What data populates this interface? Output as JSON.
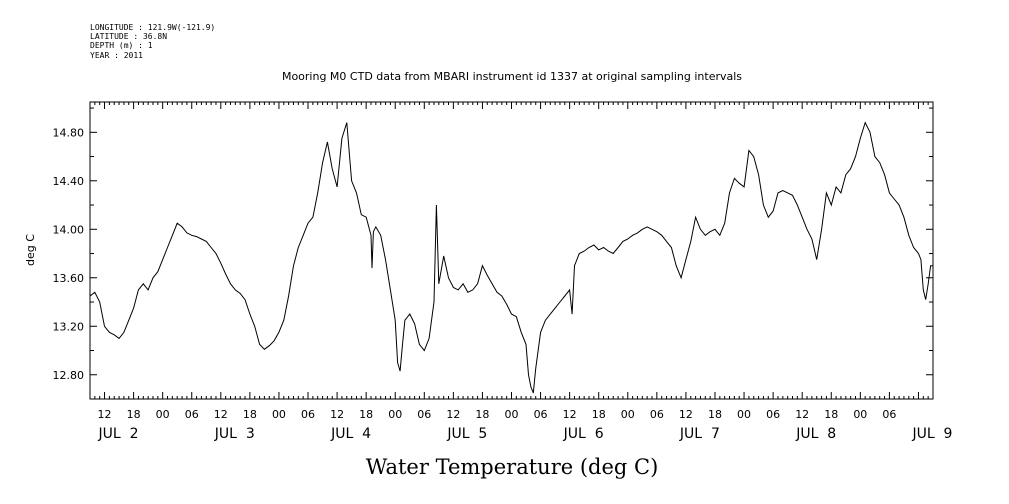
{
  "header": {
    "longitude": "LONGITUDE : 121.9W(-121.9)",
    "latitude": "LATITUDE : 36.8N",
    "depth": "DEPTH (m) : 1",
    "year": "YEAR : 2011"
  },
  "chart_data": {
    "type": "line",
    "title": "Mooring M0 CTD data from MBARI instrument id 1337 at original sampling intervals",
    "xlabel": "Water Temperature (deg C)",
    "ylabel": "deg C",
    "xlim_hours": [
      9,
      183
    ],
    "ylim": [
      12.6,
      15.05
    ],
    "yticks": [
      "12.80",
      "13.20",
      "13.60",
      "14.00",
      "14.40",
      "14.80"
    ],
    "x_hour_labels": [
      "12",
      "18",
      "00",
      "06",
      "12",
      "18",
      "00",
      "06",
      "12",
      "18",
      "00",
      "06",
      "12",
      "18",
      "00",
      "06",
      "12",
      "18",
      "00",
      "06",
      "12",
      "18",
      "00",
      "06",
      "12",
      "18",
      "00",
      "06"
    ],
    "day_labels": [
      "JUL  2",
      "JUL  3",
      "JUL  4",
      "JUL  5",
      "JUL  6",
      "JUL  7",
      "JUL  8",
      "JUL  9"
    ],
    "grid": false,
    "series": [
      {
        "values": [
          [
            9,
            13.45
          ],
          [
            10,
            13.48
          ],
          [
            11,
            13.4
          ],
          [
            12,
            13.2
          ],
          [
            13,
            13.15
          ],
          [
            14,
            13.13
          ],
          [
            15,
            13.1
          ],
          [
            16,
            13.15
          ],
          [
            17,
            13.25
          ],
          [
            18,
            13.35
          ],
          [
            19,
            13.5
          ],
          [
            20,
            13.55
          ],
          [
            21,
            13.5
          ],
          [
            22,
            13.6
          ],
          [
            23,
            13.65
          ],
          [
            24,
            13.75
          ],
          [
            25,
            13.85
          ],
          [
            26,
            13.95
          ],
          [
            27,
            14.05
          ],
          [
            28,
            14.02
          ],
          [
            29,
            13.97
          ],
          [
            30,
            13.95
          ],
          [
            31,
            13.94
          ],
          [
            32,
            13.92
          ],
          [
            33,
            13.9
          ],
          [
            34,
            13.85
          ],
          [
            35,
            13.8
          ],
          [
            36,
            13.72
          ],
          [
            37,
            13.63
          ],
          [
            38,
            13.55
          ],
          [
            39,
            13.5
          ],
          [
            40,
            13.47
          ],
          [
            41,
            13.42
          ],
          [
            42,
            13.3
          ],
          [
            43,
            13.2
          ],
          [
            44,
            13.05
          ],
          [
            45,
            13.01
          ],
          [
            46,
            13.04
          ],
          [
            47,
            13.08
          ],
          [
            48,
            13.15
          ],
          [
            49,
            13.25
          ],
          [
            50,
            13.45
          ],
          [
            51,
            13.7
          ],
          [
            52,
            13.85
          ],
          [
            53,
            13.95
          ],
          [
            54,
            14.05
          ],
          [
            55,
            14.1
          ],
          [
            56,
            14.3
          ],
          [
            57,
            14.55
          ],
          [
            58,
            14.72
          ],
          [
            59,
            14.5
          ],
          [
            60,
            14.35
          ],
          [
            61,
            14.75
          ],
          [
            62,
            14.88
          ],
          [
            63,
            14.4
          ],
          [
            64,
            14.3
          ],
          [
            65,
            14.12
          ],
          [
            66,
            14.1
          ],
          [
            67,
            13.95
          ],
          [
            67.2,
            13.68
          ],
          [
            67.5,
            13.98
          ],
          [
            68,
            14.02
          ],
          [
            69,
            13.95
          ],
          [
            70,
            13.75
          ],
          [
            71,
            13.5
          ],
          [
            72,
            13.25
          ],
          [
            72.5,
            12.9
          ],
          [
            73,
            12.83
          ],
          [
            73.5,
            13.05
          ],
          [
            74,
            13.25
          ],
          [
            75,
            13.3
          ],
          [
            76,
            13.22
          ],
          [
            77,
            13.05
          ],
          [
            78,
            13.0
          ],
          [
            79,
            13.1
          ],
          [
            80,
            13.4
          ],
          [
            80.5,
            14.2
          ],
          [
            81,
            13.55
          ],
          [
            82,
            13.78
          ],
          [
            83,
            13.6
          ],
          [
            84,
            13.52
          ],
          [
            85,
            13.5
          ],
          [
            86,
            13.55
          ],
          [
            87,
            13.48
          ],
          [
            88,
            13.5
          ],
          [
            89,
            13.55
          ],
          [
            90,
            13.7
          ],
          [
            91,
            13.62
          ],
          [
            92,
            13.55
          ],
          [
            93,
            13.48
          ],
          [
            94,
            13.45
          ],
          [
            95,
            13.38
          ],
          [
            96,
            13.3
          ],
          [
            97,
            13.28
          ],
          [
            98,
            13.15
          ],
          [
            99,
            13.05
          ],
          [
            99.5,
            12.8
          ],
          [
            100,
            12.7
          ],
          [
            100.5,
            12.65
          ],
          [
            101,
            12.85
          ],
          [
            102,
            13.15
          ],
          [
            103,
            13.25
          ],
          [
            104,
            13.3
          ],
          [
            105,
            13.35
          ],
          [
            106,
            13.4
          ],
          [
            107,
            13.45
          ],
          [
            108,
            13.5
          ],
          [
            108.5,
            13.3
          ],
          [
            109,
            13.7
          ],
          [
            110,
            13.8
          ],
          [
            111,
            13.82
          ],
          [
            112,
            13.85
          ],
          [
            113,
            13.87
          ],
          [
            114,
            13.83
          ],
          [
            115,
            13.85
          ],
          [
            116,
            13.82
          ],
          [
            117,
            13.8
          ],
          [
            118,
            13.85
          ],
          [
            119,
            13.9
          ],
          [
            120,
            13.92
          ],
          [
            121,
            13.95
          ],
          [
            122,
            13.97
          ],
          [
            123,
            14.0
          ],
          [
            124,
            14.02
          ],
          [
            125,
            14.0
          ],
          [
            126,
            13.98
          ],
          [
            127,
            13.95
          ],
          [
            128,
            13.9
          ],
          [
            129,
            13.85
          ],
          [
            130,
            13.7
          ],
          [
            131,
            13.6
          ],
          [
            132,
            13.75
          ],
          [
            133,
            13.9
          ],
          [
            134,
            14.1
          ],
          [
            135,
            14.0
          ],
          [
            136,
            13.95
          ],
          [
            137,
            13.98
          ],
          [
            138,
            14.0
          ],
          [
            139,
            13.95
          ],
          [
            140,
            14.05
          ],
          [
            141,
            14.3
          ],
          [
            142,
            14.42
          ],
          [
            143,
            14.38
          ],
          [
            144,
            14.35
          ],
          [
            145,
            14.65
          ],
          [
            146,
            14.6
          ],
          [
            147,
            14.45
          ],
          [
            148,
            14.2
          ],
          [
            149,
            14.1
          ],
          [
            150,
            14.15
          ],
          [
            151,
            14.3
          ],
          [
            152,
            14.32
          ],
          [
            153,
            14.3
          ],
          [
            154,
            14.28
          ],
          [
            155,
            14.2
          ],
          [
            156,
            14.1
          ],
          [
            157,
            14.0
          ],
          [
            158,
            13.92
          ],
          [
            159,
            13.75
          ],
          [
            160,
            14.0
          ],
          [
            161,
            14.3
          ],
          [
            162,
            14.2
          ],
          [
            163,
            14.35
          ],
          [
            164,
            14.3
          ],
          [
            165,
            14.45
          ],
          [
            166,
            14.5
          ],
          [
            167,
            14.6
          ],
          [
            168,
            14.75
          ],
          [
            169,
            14.88
          ],
          [
            170,
            14.8
          ],
          [
            171,
            14.6
          ],
          [
            172,
            14.55
          ],
          [
            173,
            14.45
          ],
          [
            174,
            14.3
          ],
          [
            175,
            14.25
          ],
          [
            176,
            14.2
          ],
          [
            177,
            14.1
          ],
          [
            178,
            13.95
          ],
          [
            179,
            13.85
          ],
          [
            180,
            13.8
          ],
          [
            180.5,
            13.75
          ],
          [
            181,
            13.5
          ],
          [
            181.5,
            13.42
          ],
          [
            182,
            13.55
          ],
          [
            182.5,
            13.7
          ],
          [
            183,
            13.7
          ]
        ]
      }
    ]
  }
}
